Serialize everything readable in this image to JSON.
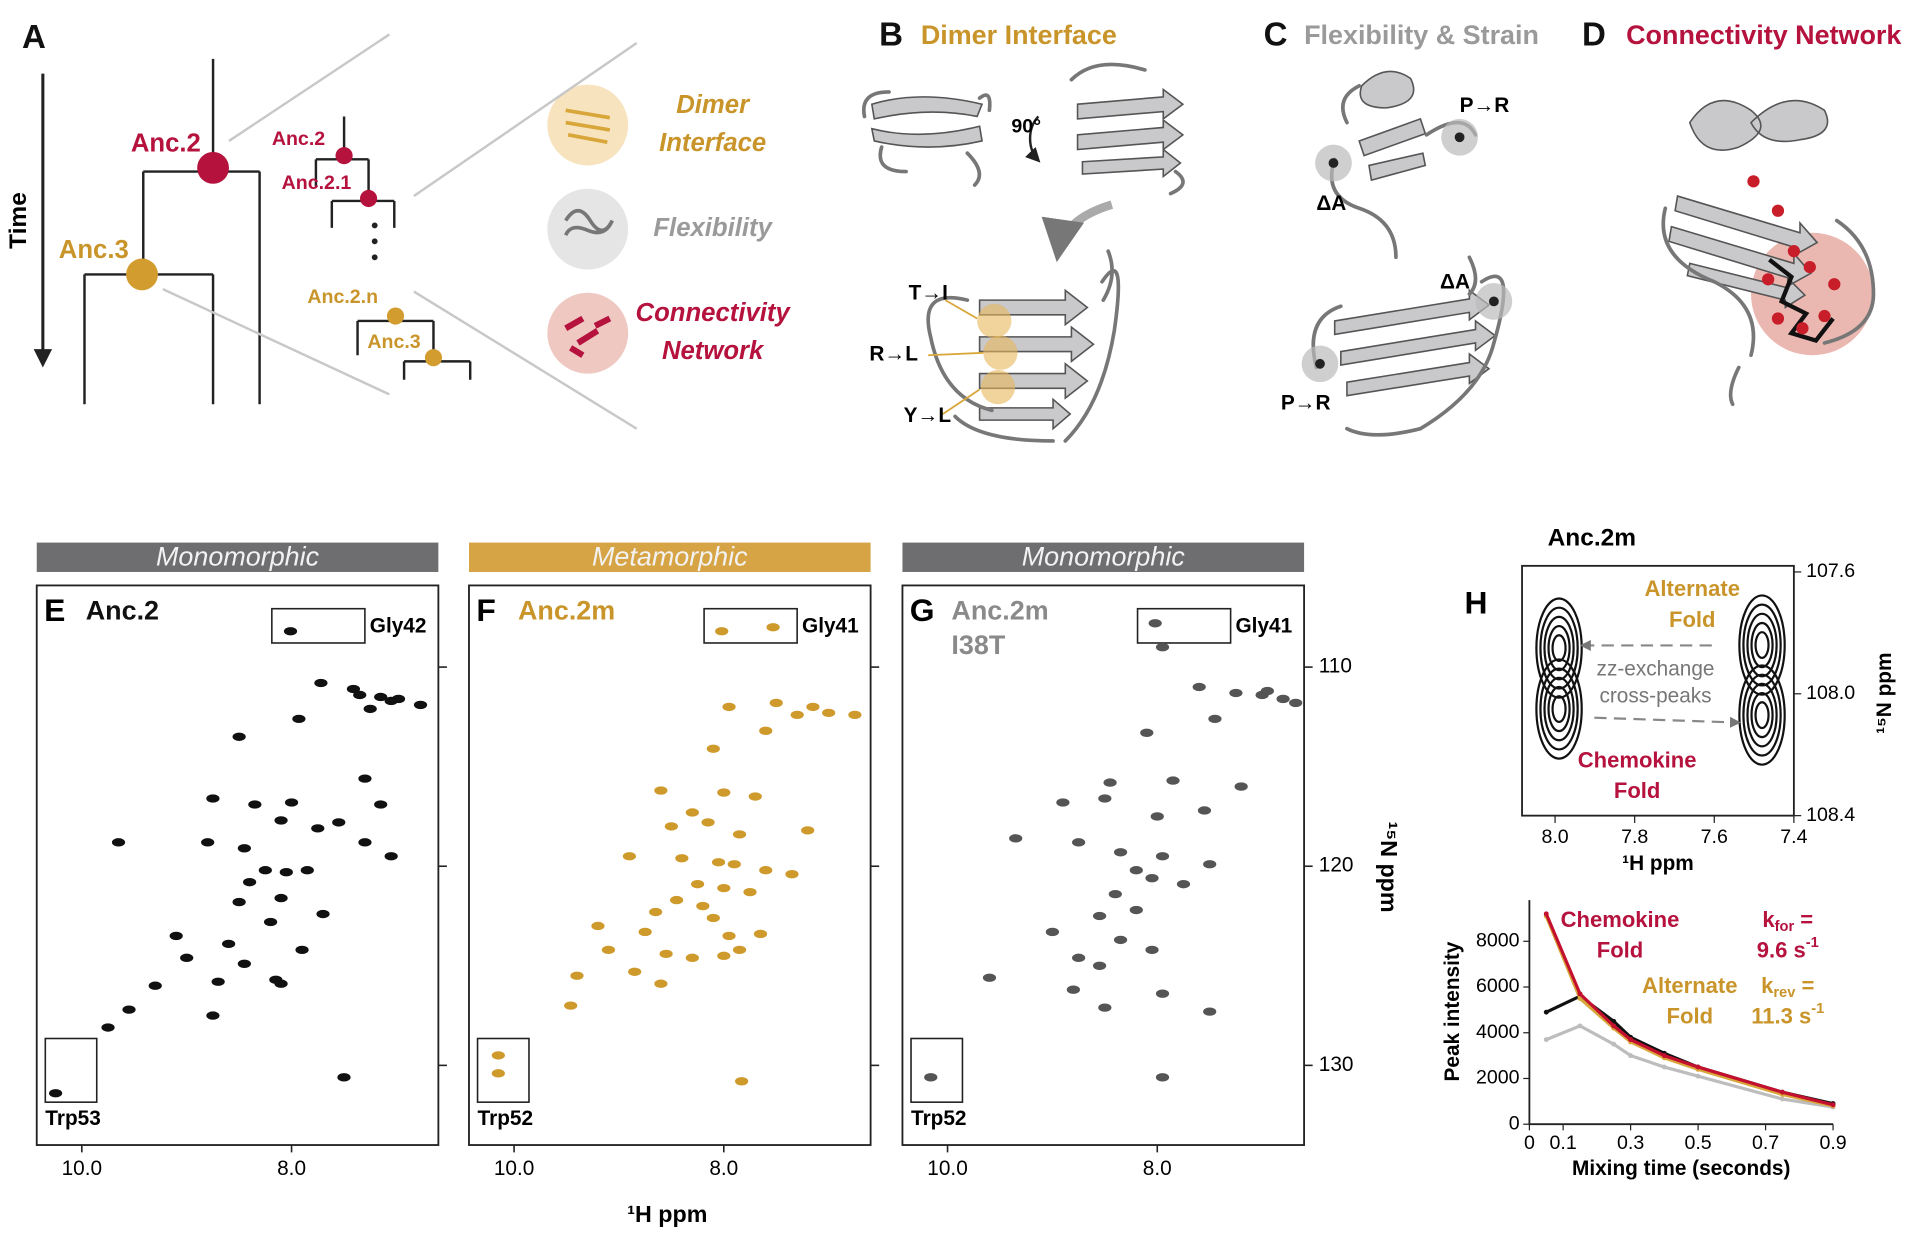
{
  "panel_a": {
    "letter": "A",
    "time_label": "Time",
    "anc2": "Anc.2",
    "anc3": "Anc.3",
    "zoom_labels": [
      "Anc.2",
      "Anc.2.1",
      "Anc.2.n",
      "Anc.3"
    ],
    "legend": [
      {
        "lines": [
          "Dimer",
          "Interface"
        ],
        "color": "#c9952a",
        "fill": "#f5dcae"
      },
      {
        "lines": [
          "Flexibility"
        ],
        "color": "#9a9a9a",
        "fill": "#dedede"
      },
      {
        "lines": [
          "Connectivity",
          "Network"
        ],
        "color": "#b5123e",
        "fill": "#ecbab3"
      }
    ]
  },
  "panel_b": {
    "letter": "B",
    "title": "Dimer Interface",
    "rotation": "90°",
    "mutations": [
      "T→I",
      "R→L",
      "Y→L"
    ]
  },
  "panel_c": {
    "letter": "C",
    "title": "Flexibility & Strain",
    "labels": [
      "P→R",
      "ΔA",
      "ΔA",
      "P→R"
    ]
  },
  "panel_d": {
    "letter": "D",
    "title": "Connectivity Network"
  },
  "spectra": {
    "type": "scatter",
    "x_label": "¹H ppm",
    "y_label": "¹⁵N ppm",
    "xlim": [
      10.43,
      6.6
    ],
    "ylim": [
      105.9,
      134
    ],
    "xticks": [
      {
        "value": 10,
        "label": "10.0"
      },
      {
        "value": 8,
        "label": "8.0"
      }
    ],
    "yticks": [
      110,
      120,
      130
    ],
    "panels": [
      {
        "letter": "E",
        "banner": "Monomorphic",
        "banner_color": "#6e6e70",
        "name": [
          "Anc.2"
        ],
        "name_color": "#111111",
        "color": "#111111",
        "box_labels": [
          "Gly42",
          "Trp53"
        ],
        "x": [
          8.01,
          7.72,
          7.41,
          7.35,
          7.15,
          6.98,
          6.77,
          7.05,
          7.25,
          8.5,
          7.93,
          7.3,
          8.75,
          8.35,
          8.0,
          7.15,
          7.55,
          8.1,
          7.75,
          9.65,
          8.8,
          8.45,
          7.3,
          7.05,
          8.25,
          8.05,
          7.85,
          8.4,
          8.1,
          8.5,
          7.7,
          8.2,
          9.1,
          8.6,
          7.9,
          9.0,
          8.45,
          8.7,
          8.15,
          9.3,
          8.1,
          9.55,
          8.75,
          9.75,
          7.5,
          10.25
        ],
        "y": [
          108.2,
          110.8,
          111.1,
          111.4,
          111.5,
          111.6,
          111.9,
          111.7,
          112.1,
          113.5,
          112.6,
          115.6,
          116.6,
          116.9,
          116.8,
          116.9,
          117.8,
          117.7,
          118.1,
          118.8,
          118.8,
          119.1,
          118.8,
          119.5,
          120.2,
          120.3,
          120.2,
          120.8,
          121.6,
          121.8,
          122.4,
          122.8,
          123.5,
          123.9,
          124.2,
          124.6,
          124.9,
          125.8,
          125.7,
          126.0,
          125.9,
          127.2,
          127.5,
          128.1,
          130.6,
          131.4
        ]
      },
      {
        "letter": "F",
        "banner": "Metamorphic",
        "banner_color": "#d6a444",
        "name": [
          "Anc.2m"
        ],
        "name_color": "#c9952a",
        "color": "#cf9a2c",
        "box_labels": [
          "Gly41",
          "Trp52"
        ],
        "x": [
          8.02,
          7.53,
          7.95,
          7.5,
          7.15,
          7.3,
          7.0,
          6.75,
          7.6,
          8.1,
          8.6,
          8.0,
          7.7,
          8.3,
          8.15,
          8.5,
          7.85,
          7.2,
          8.9,
          8.4,
          8.05,
          7.9,
          7.6,
          7.35,
          8.25,
          8.0,
          7.75,
          8.45,
          8.2,
          8.65,
          8.1,
          9.2,
          8.75,
          7.95,
          7.65,
          9.1,
          8.55,
          8.3,
          8.0,
          7.85,
          8.85,
          9.4,
          8.6,
          7.83,
          9.46,
          10.15,
          10.15
        ],
        "y": [
          108.2,
          108.0,
          112.0,
          111.8,
          112.0,
          112.4,
          112.3,
          112.4,
          113.2,
          114.1,
          116.2,
          116.3,
          116.5,
          117.3,
          117.8,
          118.0,
          118.4,
          118.2,
          119.5,
          119.6,
          119.8,
          119.9,
          120.2,
          120.4,
          120.9,
          121.1,
          121.3,
          121.7,
          122.0,
          122.3,
          122.6,
          123.0,
          123.3,
          123.5,
          123.4,
          124.2,
          124.4,
          124.6,
          124.5,
          124.2,
          125.3,
          125.5,
          125.9,
          130.8,
          127.0,
          129.5,
          130.4
        ]
      },
      {
        "letter": "G",
        "banner": "Monomorphic",
        "banner_color": "#6e6e70",
        "name": [
          "Anc.2m",
          "I38T"
        ],
        "name_color": "#8a8a8a",
        "color": "#555555",
        "box_labels": [
          "Gly41",
          "Trp52"
        ],
        "x": [
          8.02,
          7.95,
          7.6,
          7.25,
          7.0,
          6.95,
          6.8,
          6.68,
          7.45,
          8.1,
          8.45,
          7.85,
          7.2,
          8.9,
          8.5,
          7.55,
          8.0,
          9.35,
          8.75,
          8.35,
          7.95,
          7.5,
          8.2,
          8.05,
          7.75,
          8.4,
          8.2,
          8.55,
          9.0,
          8.35,
          8.05,
          8.75,
          8.55,
          9.6,
          8.8,
          7.95,
          8.5,
          10.16,
          7.95,
          7.5
        ],
        "y": [
          107.8,
          109.0,
          111.0,
          111.3,
          111.4,
          111.2,
          111.6,
          111.8,
          112.6,
          113.3,
          115.8,
          115.7,
          116.0,
          116.8,
          116.6,
          117.2,
          117.5,
          118.6,
          118.8,
          119.3,
          119.5,
          119.9,
          120.2,
          120.6,
          120.9,
          121.4,
          122.2,
          122.5,
          123.3,
          123.7,
          124.2,
          124.6,
          125.0,
          125.6,
          126.2,
          126.4,
          127.1,
          130.6,
          130.6,
          127.3
        ]
      }
    ]
  },
  "panel_h": {
    "letter": "H",
    "exchange": {
      "type": "contour",
      "title": "Anc.2m",
      "xlim": [
        8.083,
        7.4
      ],
      "ylim": [
        107.58,
        108.4
      ],
      "xticks": [
        {
          "value": 8,
          "label": "8.0"
        },
        7.8,
        7.6,
        7.4
      ],
      "yticks": [
        107.6,
        {
          "value": 108,
          "label": "108.0"
        },
        108.4
      ],
      "x_label": "¹H ppm",
      "y_label": "¹⁵N ppm",
      "peaks_x": [
        7.99,
        7.99,
        7.48,
        7.48
      ],
      "peaks_y": [
        107.85,
        108.05,
        107.84,
        108.07
      ],
      "alternate": [
        "Alternate",
        "Fold"
      ],
      "chemokine": [
        "Chemokine",
        "Fold"
      ],
      "arrow_label": [
        "zz-exchange",
        "cross-peaks"
      ]
    },
    "buildup": {
      "type": "line",
      "x_label": "Mixing time (seconds)",
      "y_label": "Peak intensity",
      "xlim": [
        0,
        0.9
      ],
      "xticks": [
        0,
        0.1,
        0.3,
        0.5,
        0.7,
        0.9
      ],
      "ylim": [
        0,
        9800
      ],
      "yticks": [
        0,
        2000,
        4000,
        6000,
        8000
      ],
      "x": [
        0.05,
        0.15,
        0.25,
        0.3,
        0.4,
        0.5,
        0.75,
        0.9
      ],
      "series": [
        {
          "color": "#bdbdbd",
          "values": [
            3700,
            4300,
            3500,
            3000,
            2500,
            2100,
            1100,
            750
          ]
        },
        {
          "color": "#111111",
          "values": [
            4900,
            5600,
            4500,
            3800,
            3100,
            2500,
            1400,
            900
          ]
        },
        {
          "color": "#d9a63a",
          "values": [
            9100,
            5500,
            4200,
            3600,
            2900,
            2400,
            1300,
            800
          ]
        },
        {
          "color": "#c4102f",
          "values": [
            9200,
            5700,
            4300,
            3700,
            3000,
            2500,
            1400,
            850
          ]
        }
      ],
      "annotations": [
        {
          "lines": [
            "Chemokine",
            "Fold"
          ],
          "color": "#b5123e"
        },
        {
          "lines": [
            "Alternate",
            "Fold"
          ],
          "color": "#c9952a"
        }
      ],
      "rates": [
        {
          "symbol": "k",
          "subscript": "for",
          "equals": "=",
          "value": 9.6,
          "unit": "s",
          "exponent": "-1",
          "color": "#b5123e"
        },
        {
          "symbol": "k",
          "subscript": "rev",
          "equals": "=",
          "value": 11.3,
          "unit": "s",
          "exponent": "-1",
          "color": "#c9952a"
        }
      ]
    }
  }
}
